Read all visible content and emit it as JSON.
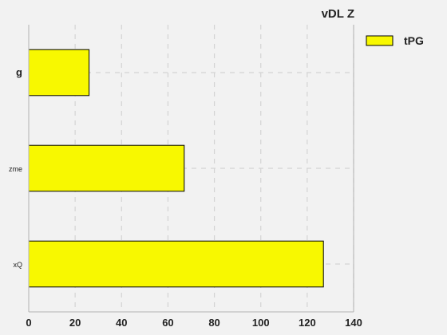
{
  "chart_data": {
    "type": "bar",
    "orientation": "horizontal",
    "title": "vDL Z",
    "categories": [
      "xQ",
      "zme",
      "g"
    ],
    "series": [
      {
        "name": "tPG",
        "values": [
          127,
          67,
          26
        ],
        "color": "#f8f800"
      }
    ],
    "xlim": [
      0,
      140
    ],
    "xticks": [
      0,
      20,
      40,
      60,
      80,
      100,
      120,
      140
    ],
    "xlabel": "",
    "ylabel": "",
    "grid": true,
    "legend_position": "top-right"
  }
}
